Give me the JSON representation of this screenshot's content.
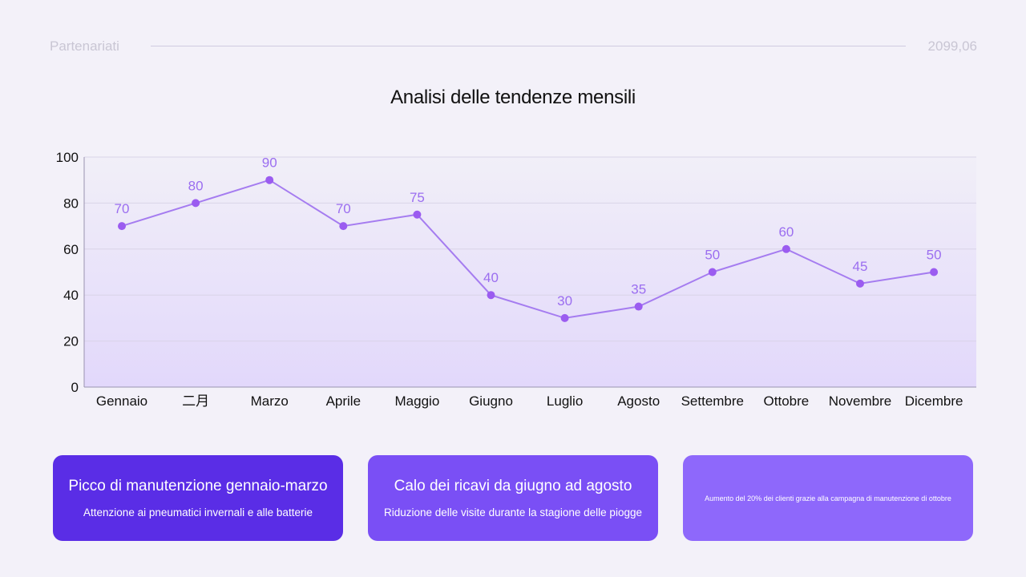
{
  "header": {
    "left_label": "Partenariati",
    "right_label": "2099,06"
  },
  "chart_data": {
    "type": "line",
    "title": "Analisi delle tendenze mensili",
    "categories": [
      "Gennaio",
      "二月",
      "Marzo",
      "Aprile",
      "Maggio",
      "Giugno",
      "Luglio",
      "Agosto",
      "Settembre",
      "Ottobre",
      "Novembre",
      "Dicembre"
    ],
    "values": [
      70,
      80,
      90,
      70,
      75,
      40,
      30,
      35,
      50,
      60,
      45,
      50
    ],
    "y_ticks": [
      "0",
      "20",
      "40",
      "60",
      "80",
      "100"
    ],
    "ylim": [
      0,
      100
    ],
    "grid": true,
    "line_color": "#a57cf0",
    "point_color": "#9b5cf0",
    "label_color": "#9b6ef0"
  },
  "cards": [
    {
      "title": "Picco di manutenzione gennaio-marzo",
      "subtitle": "Attenzione ai pneumatici invernali e alle batterie",
      "color": "#5a2de6"
    },
    {
      "title": "Calo dei ricavi da giugno ad agosto",
      "subtitle": "Riduzione delle visite durante la stagione delle piogge",
      "color": "#7a4ff5"
    },
    {
      "title": "",
      "subtitle": "Aumento del 20% dei clienti grazie alla campagna di manutenzione di ottobre",
      "color": "#8e68fb"
    }
  ]
}
